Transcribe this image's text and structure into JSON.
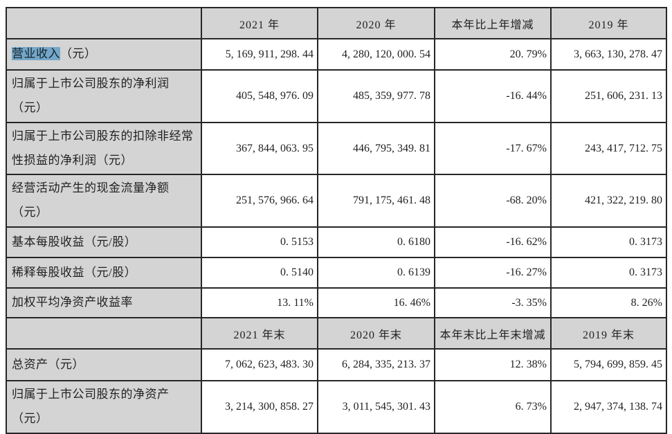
{
  "colors": {
    "page_bg": "#ffffff",
    "header_bg": "#d4d4d4",
    "label_bg": "#d4d4d4",
    "border": "#262626",
    "label_text": "#1f1f1f",
    "number_text": "#2f3a44",
    "selection_highlight_bg": "#74a7c8"
  },
  "table": {
    "headers_annual": [
      "",
      "2021 年",
      "2020 年",
      "本年比上年增减",
      "2019 年"
    ],
    "headers_eoy": [
      "",
      "2021 年末",
      "2020 年末",
      "本年末比上年末增减",
      "2019 年末"
    ],
    "rows_annual": [
      {
        "label_highlight": "营业收入",
        "label_rest": "（元）",
        "values": [
          "5, 169, 911, 298. 44",
          "4, 280, 120, 000. 54",
          "20. 79%",
          "3, 663, 130, 278. 47"
        ]
      },
      {
        "label": "归属于上市公司股东的净利润（元）",
        "values": [
          "405, 548, 976. 09",
          "485, 359, 977. 78",
          "-16. 44%",
          "251, 606, 231. 13"
        ]
      },
      {
        "label": "归属于上市公司股东的扣除非经常性损益的净利润（元）",
        "values": [
          "367, 844, 063. 95",
          "446, 795, 349. 81",
          "-17. 67%",
          "243, 417, 712. 75"
        ]
      },
      {
        "label": "经营活动产生的现金流量净额（元）",
        "values": [
          "251, 576, 966. 64",
          "791, 175, 461. 48",
          "-68. 20%",
          "421, 322, 219. 80"
        ]
      },
      {
        "label": "基本每股收益（元/股）",
        "values": [
          "0. 5153",
          "0. 6180",
          "-16. 62%",
          "0. 3173"
        ]
      },
      {
        "label": "稀释每股收益（元/股）",
        "values": [
          "0. 5140",
          "0. 6139",
          "-16. 27%",
          "0. 3173"
        ]
      },
      {
        "label": "加权平均净资产收益率",
        "values": [
          "13. 11%",
          "16. 46%",
          "-3. 35%",
          "8. 26%"
        ]
      }
    ],
    "rows_eoy": [
      {
        "label": "总资产（元）",
        "values": [
          "7, 062, 623, 483. 30",
          "6, 284, 335, 213. 37",
          "12. 38%",
          "5, 794, 699, 859. 45"
        ]
      },
      {
        "label": "归属于上市公司股东的净资产（元）",
        "values": [
          "3, 214, 300, 858. 27",
          "3, 011, 545, 301. 43",
          "6. 73%",
          "2, 947, 374, 138. 74"
        ]
      }
    ]
  }
}
